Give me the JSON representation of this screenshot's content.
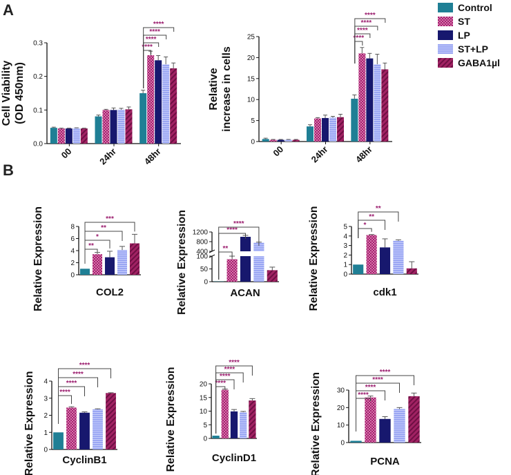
{
  "panels": {
    "a": "A",
    "b": "B"
  },
  "colors": {
    "control": "#1f7f95",
    "st": "#a4206f",
    "lp": "#17186e",
    "stlp": "#9aa6f3",
    "gaba": "#a12263",
    "sig": "#9b1d6e",
    "axis": "#111111",
    "bracket": "#444444"
  },
  "legend": [
    {
      "key": "control",
      "label": "Control",
      "pattern": "solid"
    },
    {
      "key": "st",
      "label": "ST",
      "pattern": "check"
    },
    {
      "key": "lp",
      "label": "LP",
      "pattern": "solid"
    },
    {
      "key": "stlp",
      "label": "ST+LP",
      "pattern": "hstripe"
    },
    {
      "key": "gaba",
      "label": "GABA1µl",
      "pattern": "diag"
    }
  ],
  "chart_data": [
    {
      "id": "viability",
      "type": "bar",
      "grouped": true,
      "ylabel": [
        "Cell Viability",
        "(OD 450nm)"
      ],
      "ylim": [
        0,
        0.3
      ],
      "yticks": [
        0.0,
        0.1,
        0.2,
        0.3
      ],
      "categories": [
        "00",
        "24hr",
        "48hr"
      ],
      "series": [
        {
          "name": "Control",
          "values": [
            0.047,
            0.081,
            0.15
          ],
          "errors": [
            0.002,
            0.004,
            0.009
          ]
        },
        {
          "name": "ST",
          "values": [
            0.045,
            0.1,
            0.263
          ],
          "errors": [
            0.001,
            0.002,
            0.012
          ]
        },
        {
          "name": "LP",
          "values": [
            0.045,
            0.1,
            0.248
          ],
          "errors": [
            0.001,
            0.006,
            0.014
          ]
        },
        {
          "name": "ST+LP",
          "values": [
            0.046,
            0.101,
            0.236
          ],
          "errors": [
            0.001,
            0.004,
            0.022
          ]
        },
        {
          "name": "GABA1µl",
          "values": [
            0.045,
            0.102,
            0.224
          ],
          "errors": [
            0.001,
            0.007,
            0.016
          ]
        }
      ],
      "significance": [
        {
          "group": 2,
          "from": 0,
          "to": 1,
          "label": "****"
        },
        {
          "group": 2,
          "from": 0,
          "to": 2,
          "label": "****"
        },
        {
          "group": 2,
          "from": 0,
          "to": 3,
          "label": "****"
        },
        {
          "group": 2,
          "from": 0,
          "to": 4,
          "label": "****"
        }
      ]
    },
    {
      "id": "increase",
      "type": "bar",
      "grouped": true,
      "ylabel": [
        "Relative",
        "increase in cells"
      ],
      "ylim": [
        0,
        25
      ],
      "yticks": [
        0,
        5,
        10,
        15,
        20,
        25
      ],
      "categories": [
        "00",
        "24hr",
        "48hr"
      ],
      "series": [
        {
          "name": "Control",
          "values": [
            0.6,
            3.6,
            10.2
          ],
          "errors": [
            0.2,
            0.4,
            0.9
          ]
        },
        {
          "name": "ST",
          "values": [
            0.4,
            5.5,
            21.0
          ],
          "errors": [
            0.1,
            0.2,
            1.4
          ]
        },
        {
          "name": "LP",
          "values": [
            0.4,
            5.6,
            19.8
          ],
          "errors": [
            0.1,
            0.7,
            1.2
          ]
        },
        {
          "name": "ST+LP",
          "values": [
            0.4,
            5.7,
            18.4
          ],
          "errors": [
            0.1,
            0.3,
            2.4
          ]
        },
        {
          "name": "GABA1µl",
          "values": [
            0.4,
            5.8,
            17.2
          ],
          "errors": [
            0.1,
            0.7,
            1.5
          ]
        }
      ],
      "significance": [
        {
          "group": 2,
          "from": 0,
          "to": 1,
          "label": "****"
        },
        {
          "group": 2,
          "from": 0,
          "to": 2,
          "label": "****"
        },
        {
          "group": 2,
          "from": 0,
          "to": 3,
          "label": "****"
        },
        {
          "group": 2,
          "from": 0,
          "to": 4,
          "label": "****"
        }
      ]
    },
    {
      "id": "col2",
      "type": "bar",
      "gene": "COL2",
      "ylabel": "Relative Expression",
      "ylim": [
        0,
        8
      ],
      "yticks": [
        0,
        2,
        4,
        6,
        8
      ],
      "categories": [
        "Control",
        "ST",
        "LP",
        "ST+LP",
        "GABA1µl"
      ],
      "values": [
        1.0,
        3.4,
        2.9,
        4.1,
        5.2
      ],
      "errors": [
        0.0,
        0.3,
        1.0,
        0.6,
        1.5
      ],
      "significance": [
        {
          "from": 0,
          "to": 1,
          "label": "**"
        },
        {
          "from": 0,
          "to": 2,
          "label": "*"
        },
        {
          "from": 0,
          "to": 3,
          "label": "**"
        },
        {
          "from": 0,
          "to": 4,
          "label": "***"
        }
      ]
    },
    {
      "id": "acan",
      "type": "bar",
      "gene": "ACAN",
      "ylabel": "Relative Expression",
      "broken_axis": {
        "lower": [
          0,
          100
        ],
        "upper": [
          400,
          1200
        ]
      },
      "yticks_lower": [
        0,
        50,
        100
      ],
      "yticks_upper": [
        400,
        800,
        1200
      ],
      "categories": [
        "Control",
        "ST",
        "LP",
        "ST+LP",
        "GABA1µl"
      ],
      "values": [
        1,
        88,
        1000,
        760,
        45
      ],
      "errors": [
        0,
        12,
        60,
        20,
        12
      ],
      "significance": [
        {
          "from": 0,
          "to": 1,
          "label": "**"
        },
        {
          "from": 0,
          "to": 2,
          "label": "****"
        },
        {
          "from": 0,
          "to": 3,
          "label": "****"
        }
      ]
    },
    {
      "id": "cdk1",
      "type": "bar",
      "gene": "cdk1",
      "ylabel": "Relative Expression",
      "ylim": [
        0,
        5
      ],
      "yticks": [
        0,
        1,
        2,
        3,
        4,
        5
      ],
      "categories": [
        "Control",
        "ST",
        "LP",
        "ST+LP",
        "GABA1µl"
      ],
      "values": [
        1.0,
        4.1,
        2.8,
        3.5,
        0.6
      ],
      "errors": [
        0.0,
        0.05,
        0.9,
        0.1,
        0.7
      ],
      "significance": [
        {
          "from": 0,
          "to": 1,
          "label": "*"
        },
        {
          "from": 0,
          "to": 2,
          "label": "**"
        },
        {
          "from": 0,
          "to": 3,
          "label": "**"
        }
      ]
    },
    {
      "id": "cyclinb1",
      "type": "bar",
      "gene": "CyclinB1",
      "ylabel": "Relative Expression",
      "ylim": [
        0,
        4
      ],
      "yticks": [
        0,
        1,
        2,
        3,
        4
      ],
      "categories": [
        "Control",
        "ST",
        "LP",
        "ST+LP",
        "GABA1µl"
      ],
      "values": [
        1.0,
        2.45,
        2.15,
        2.35,
        3.3
      ],
      "errors": [
        0.0,
        0.05,
        0.05,
        0.03,
        0.02
      ],
      "significance": [
        {
          "from": 0,
          "to": 1,
          "label": "****"
        },
        {
          "from": 0,
          "to": 2,
          "label": "****"
        },
        {
          "from": 0,
          "to": 3,
          "label": "****"
        },
        {
          "from": 0,
          "to": 4,
          "label": "****"
        }
      ]
    },
    {
      "id": "cyclind1",
      "type": "bar",
      "gene": "CyclinD1",
      "ylabel": "Relative Expression",
      "ylim": [
        0,
        20
      ],
      "yticks": [
        0,
        5,
        10,
        15,
        20
      ],
      "categories": [
        "Control",
        "ST",
        "LP",
        "ST+LP",
        "GABA1µl"
      ],
      "values": [
        1.0,
        17.8,
        9.9,
        9.6,
        13.9
      ],
      "errors": [
        0.0,
        0.3,
        0.7,
        0.3,
        0.7
      ],
      "significance": [
        {
          "from": 0,
          "to": 1,
          "label": "****"
        },
        {
          "from": 0,
          "to": 2,
          "label": "****"
        },
        {
          "from": 0,
          "to": 3,
          "label": "****"
        },
        {
          "from": 0,
          "to": 4,
          "label": "****"
        }
      ]
    },
    {
      "id": "pcna",
      "type": "bar",
      "gene": "PCNA",
      "ylabel": "Relative Expression",
      "ylim": [
        0,
        30
      ],
      "yticks": [
        0,
        10,
        20,
        30
      ],
      "categories": [
        "Control",
        "ST",
        "LP",
        "ST+LP",
        "GABA1µl"
      ],
      "values": [
        1.0,
        25.8,
        13.5,
        19.2,
        26.5
      ],
      "errors": [
        0.0,
        0.8,
        1.3,
        0.8,
        1.8
      ],
      "significance": [
        {
          "from": 0,
          "to": 1,
          "label": "****"
        },
        {
          "from": 0,
          "to": 2,
          "label": "****"
        },
        {
          "from": 0,
          "to": 3,
          "label": "****"
        },
        {
          "from": 0,
          "to": 4,
          "label": "****"
        }
      ]
    }
  ]
}
